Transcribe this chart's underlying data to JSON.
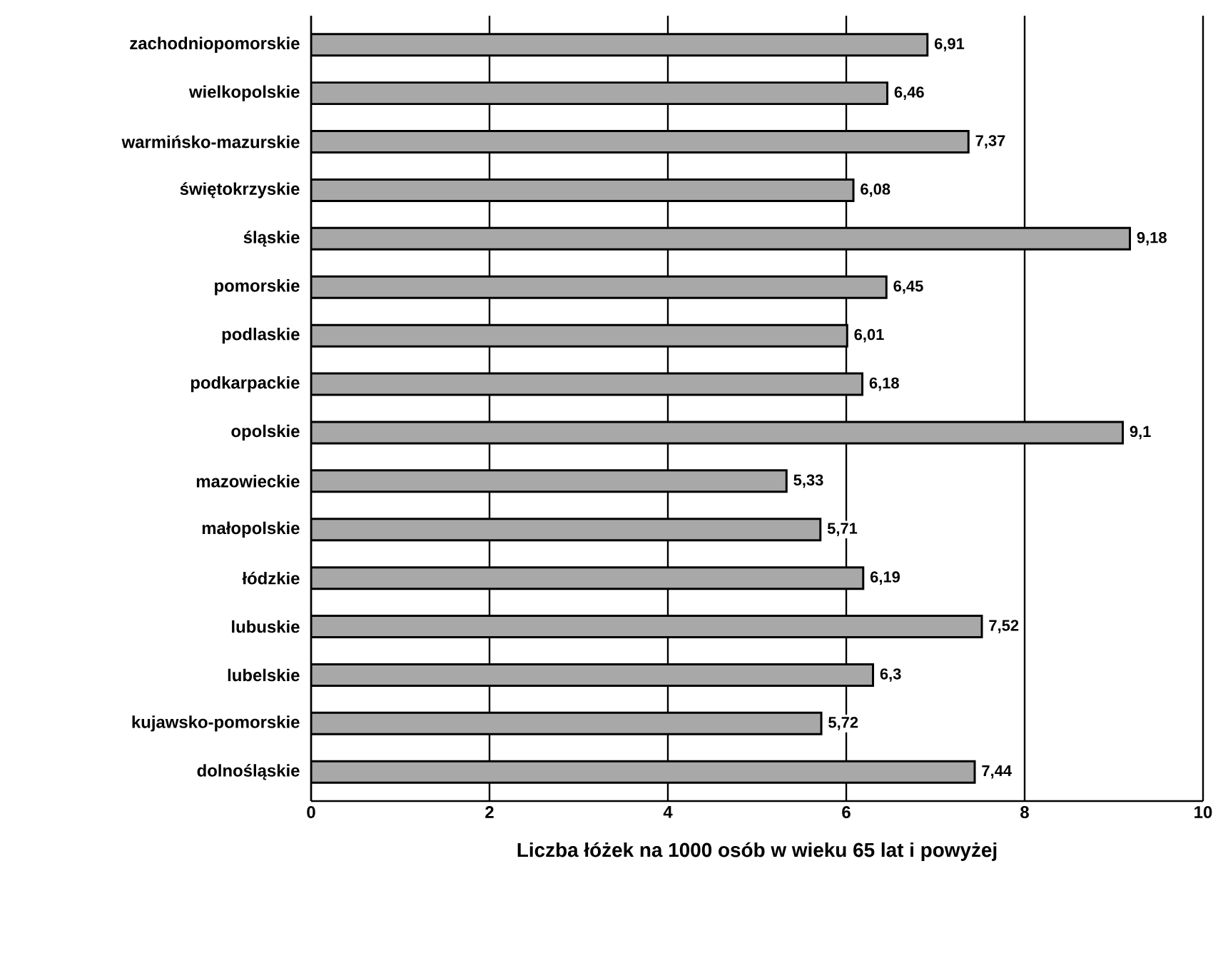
{
  "chart_data": {
    "type": "bar",
    "orientation": "horizontal",
    "xlabel": "Liczba łóżek na 1000  osób w wieku 65 lat i powyżej",
    "categories": [
      "zachodniopomorskie",
      "wielkopolskie",
      "warmińsko-mazurskie",
      "świętokrzyskie",
      "śląskie",
      "pomorskie",
      "podlaskie",
      "podkarpackie",
      "opolskie",
      "mazowieckie",
      "małopolskie",
      "łódzkie",
      "lubuskie",
      "lubelskie",
      "kujawsko-pomorskie",
      "dolnośląskie"
    ],
    "values": [
      6.91,
      6.46,
      7.37,
      6.08,
      9.18,
      6.45,
      6.01,
      6.18,
      9.1,
      5.33,
      5.71,
      6.19,
      7.52,
      6.3,
      5.72,
      7.44
    ],
    "value_labels": [
      "6,91",
      "6,46",
      "7,37",
      "6,08",
      "9,18",
      "6,45",
      "6,01",
      "6,18",
      "9,1",
      "5,33",
      "5,71",
      "6,19",
      "7,52",
      "6,3",
      "5,72",
      "7,44"
    ],
    "color": "#a8a8a8",
    "xlim": [
      0,
      10
    ],
    "xticks": [
      0,
      2,
      4,
      6,
      8,
      10
    ],
    "grid": "x"
  }
}
